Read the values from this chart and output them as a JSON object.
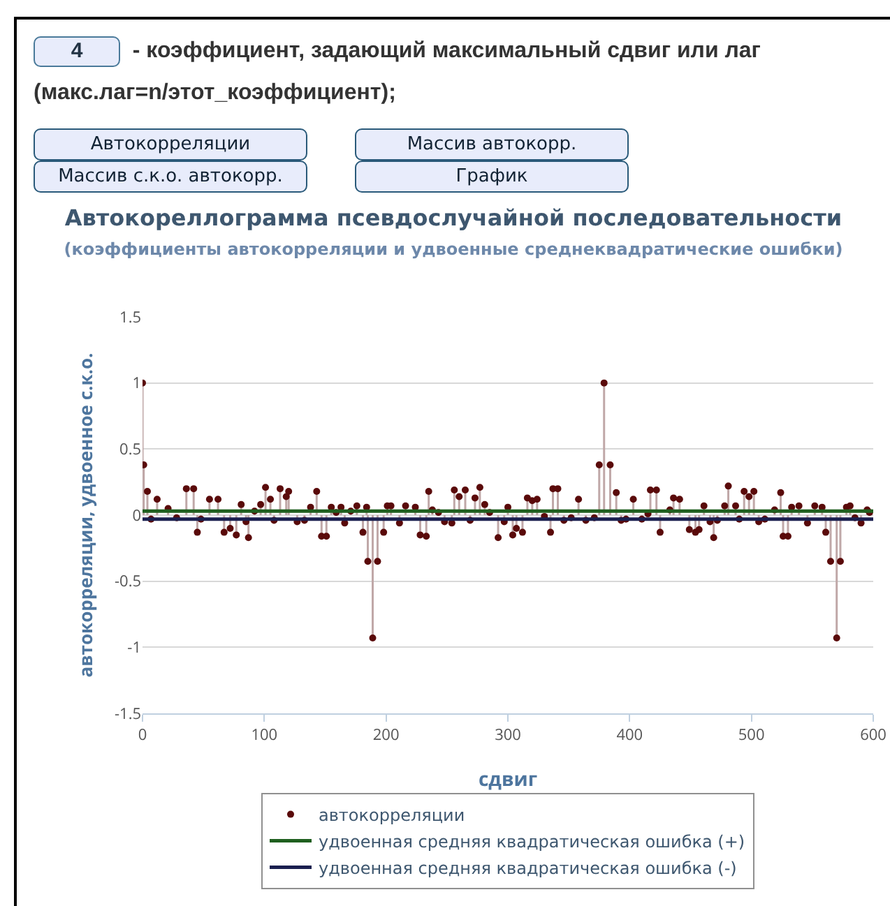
{
  "chart_data": {
    "type": "lollipop",
    "title": "Автокореллограмма псевдослучайной последовательности",
    "subtitle": "(коэффициенты автокорреляции и удвоенные среднеквадратические ошибки)",
    "xlabel": "сдвиг",
    "ylabel": "автокорреляции, удвоенное с.к.о.",
    "annotations": [
      "4",
      "- коэффициент, задающий максимальный сдвиг или лаг (макс.лаг=n/этот_коэффициент);",
      "Автокорреляции",
      "Массив автокорр.",
      "Массив с.к.о. автокорр.",
      "График"
    ],
    "series": [
      {
        "name": "автокорреляции",
        "marker": "circle",
        "color": "#5a0a0a",
        "x": [
          0,
          1,
          4,
          7,
          12,
          21,
          28,
          36,
          42,
          45,
          48,
          55,
          62,
          67,
          72,
          77,
          81,
          85,
          87,
          92,
          97,
          101,
          105,
          108,
          113,
          118,
          120,
          127,
          133,
          138,
          143,
          147,
          151,
          155,
          159,
          163,
          166,
          171,
          176,
          181,
          184,
          185,
          189,
          193,
          198,
          201,
          204,
          211,
          216,
          224,
          228,
          233,
          235,
          238,
          243,
          248,
          254,
          256,
          260,
          265,
          269,
          273,
          277,
          281,
          285,
          292,
          297,
          300,
          304,
          307,
          312,
          316,
          320,
          324,
          330,
          335,
          337,
          341,
          346,
          352,
          358,
          364,
          371,
          375,
          379,
          384,
          389,
          393,
          397,
          403,
          410,
          415,
          417,
          422,
          425,
          433,
          436,
          441,
          449,
          454,
          457,
          461,
          466,
          469,
          472,
          478,
          481,
          487,
          490,
          494,
          498,
          502,
          506,
          511,
          519,
          524,
          526,
          530,
          533,
          539,
          546,
          552,
          558,
          561,
          565,
          570,
          573,
          578,
          581,
          585,
          590,
          595,
          597
        ],
        "values": [
          1,
          0.38,
          0.18,
          -0.03,
          0.12,
          0.05,
          -0.02,
          0.2,
          0.2,
          -0.13,
          -0.03,
          0.12,
          0.12,
          -0.13,
          -0.1,
          -0.15,
          0.08,
          -0.05,
          -0.17,
          0.03,
          0.08,
          0.21,
          0.12,
          -0.04,
          0.2,
          0.14,
          0.18,
          -0.05,
          -0.04,
          0.06,
          0.18,
          -0.16,
          -0.16,
          0.06,
          0.02,
          0.06,
          -0.06,
          0.03,
          0.07,
          -0.13,
          0.06,
          -0.35,
          -0.93,
          -0.35,
          -0.13,
          0.07,
          0.07,
          -0.06,
          0.07,
          0.06,
          -0.15,
          -0.16,
          0.18,
          0.04,
          0.02,
          -0.05,
          -0.06,
          0.19,
          0.14,
          0.19,
          -0.04,
          0.13,
          0.21,
          0.08,
          0.02,
          -0.17,
          -0.05,
          0.06,
          -0.15,
          -0.1,
          -0.13,
          0.13,
          0.11,
          0.12,
          -0.01,
          -0.13,
          0.2,
          0.2,
          -0.04,
          -0.02,
          0.12,
          -0.04,
          -0.02,
          0.38,
          1,
          0.38,
          0.17,
          -0.04,
          -0.03,
          0.12,
          -0.03,
          0.01,
          0.19,
          0.19,
          -0.13,
          0.04,
          0.13,
          0.12,
          -0.11,
          -0.13,
          -0.11,
          0.07,
          -0.05,
          -0.17,
          -0.04,
          0.07,
          0.22,
          0.07,
          -0.03,
          0.18,
          0.14,
          0.18,
          -0.05,
          -0.03,
          0.04,
          0.17,
          -0.16,
          -0.16,
          0.06,
          0.07,
          -0.06,
          0.07,
          0.06,
          -0.13,
          -0.35,
          -0.93,
          -0.35,
          0.06,
          0.07,
          -0.02,
          -0.06,
          0.04,
          0.02
        ]
      },
      {
        "name": "удвоенная средняя квадратическая ошибка (+)",
        "type": "line",
        "color": "#1f5f1f",
        "x": [
          0,
          600
        ],
        "values": [
          0.03,
          0.03
        ]
      },
      {
        "name": "удвоенная средняя квадратическая ошибка (-)",
        "type": "line",
        "color": "#1a1f4f",
        "x": [
          0,
          600
        ],
        "values": [
          -0.03,
          -0.03
        ]
      }
    ],
    "xlim": [
      0,
      600
    ],
    "xticks": [
      0,
      100,
      200,
      300,
      400,
      500,
      600
    ],
    "ylim": [
      -1.5,
      1.5
    ],
    "yticks": [
      -1.5,
      -1,
      -0.5,
      0,
      0.5,
      1,
      1.5
    ],
    "grid": "y",
    "legend": "bottom",
    "line_style": "solid"
  }
}
